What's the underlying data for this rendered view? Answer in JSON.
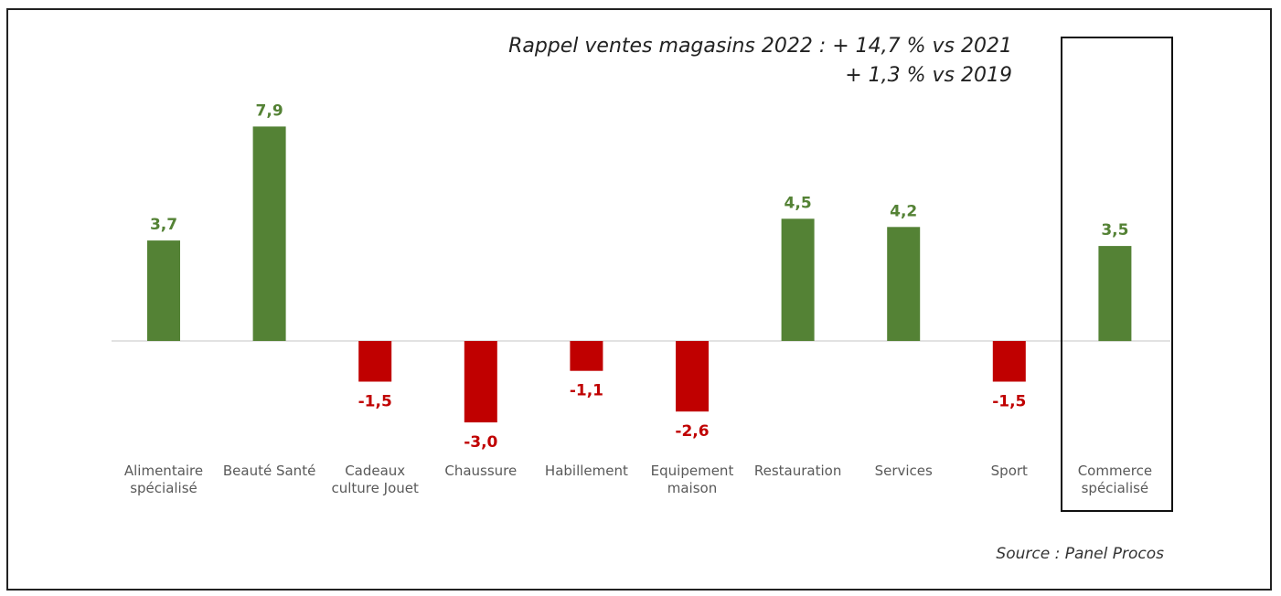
{
  "annotations": {
    "line1": "Rappel ventes magasins 2022 : + 14,7 % vs 2021",
    "line2": "+ 1,3 % vs 2019",
    "source": "Source : Panel Procos"
  },
  "colors": {
    "positive": "#548235",
    "negative": "#C00000",
    "axis": "#d9d9d9",
    "category_text": "#595959"
  },
  "chart_data": {
    "type": "bar",
    "categories": [
      [
        "Alimentaire",
        "spécialisé"
      ],
      [
        "Beauté Santé"
      ],
      [
        "Cadeaux",
        "culture Jouet"
      ],
      [
        "Chaussure"
      ],
      [
        "Habillement"
      ],
      [
        "Equipement",
        "maison"
      ],
      [
        "Restauration"
      ],
      [
        "Services"
      ],
      [
        "Sport"
      ],
      [
        "Commerce",
        "spécialisé"
      ]
    ],
    "values": [
      3.7,
      7.9,
      -1.5,
      -3.0,
      -1.1,
      -2.6,
      4.5,
      4.2,
      -1.5,
      3.5
    ],
    "data_labels": [
      "3,7",
      "7,9",
      "-1,5",
      "-3,0",
      "-1,1",
      "-2,6",
      "4,5",
      "4,2",
      "-1,5",
      "3,5"
    ],
    "highlighted_category_index": 9,
    "ylim": [
      -3.0,
      7.9
    ],
    "grid": false,
    "legend": "none"
  }
}
